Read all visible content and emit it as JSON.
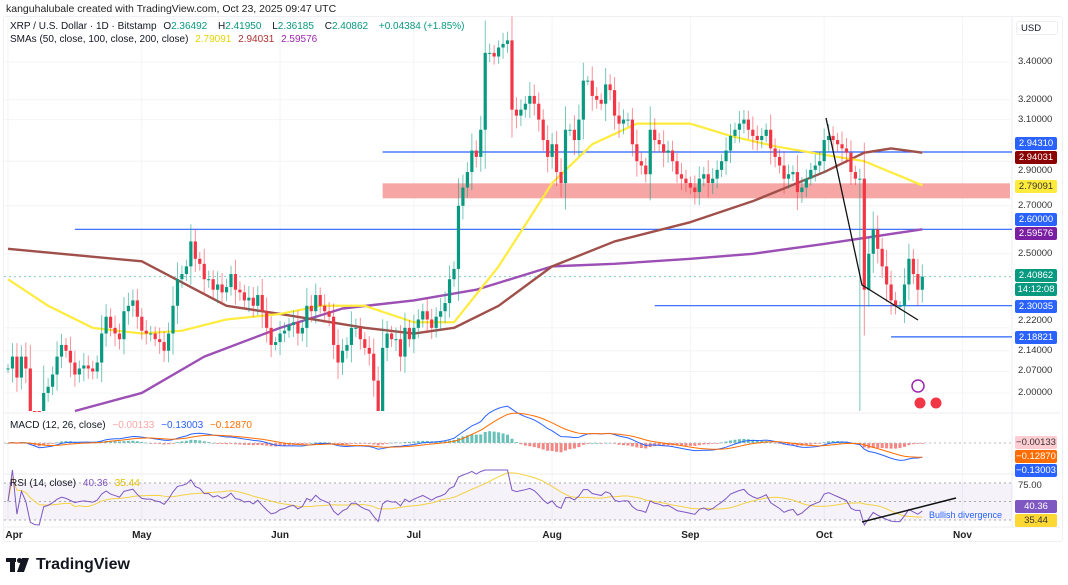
{
  "credit": "kanguhalubale created with TradingView.com, Oct 23, 2025 09:47 UTC",
  "header": {
    "symbol": "XRP / U.S. Dollar · 1D · Bitstamp",
    "o_label": "O",
    "o": "2.36492",
    "h_label": "H",
    "h": "2.41950",
    "l_label": "L",
    "l": "2.36185",
    "c_label": "C",
    "c": "2.40862",
    "change": "+0.04384 (+1.85%)",
    "sma_label": "SMAs (50, close, 100, close, 200, close)",
    "sma50": "2.79091",
    "sma100": "2.94031",
    "sma200": "2.59576"
  },
  "macd": {
    "label": "MACD (12, 26, close)",
    "hist": "−0.00133",
    "macd": "−0.13003",
    "signal": "−0.12870"
  },
  "rsi": {
    "label": "RSI (14, close)",
    "value": "40.36",
    "ma": "35.44",
    "level_label": "75.00",
    "annotation": "Bullish divergence"
  },
  "price_axis": {
    "currency": "USD",
    "labels": [
      "3.40000",
      "3.20000",
      "3.10000",
      "2.90000",
      "2.70000",
      "2.50000",
      "2.22000",
      "2.14000",
      "2.07000",
      "2.00000"
    ],
    "tags": [
      {
        "text": "2.94310",
        "color": "#2962ff"
      },
      {
        "text": "2.94031",
        "color": "#8b0000"
      },
      {
        "text": "2.79091",
        "color": "#ffeb3b",
        "fg": "#333"
      },
      {
        "text": "2.60000",
        "color": "#2962ff"
      },
      {
        "text": "2.59576",
        "color": "#7b1fa2"
      },
      {
        "text": "2.40862",
        "color": "#089981"
      },
      {
        "text": "14:12:08",
        "color": "#089981"
      },
      {
        "text": "2.30035",
        "color": "#2962ff"
      },
      {
        "text": "2.18821",
        "color": "#2962ff"
      }
    ],
    "macd_tags": [
      {
        "text": "−0.00133",
        "color": "#ffcdd2",
        "fg": "#333"
      },
      {
        "text": "−0.12870",
        "color": "#ff6d00"
      },
      {
        "text": "−0.13003",
        "color": "#2962ff"
      }
    ],
    "rsi_tags": [
      {
        "text": "40.36",
        "color": "#7e57c2"
      },
      {
        "text": "35.44",
        "color": "#fdd835",
        "fg": "#333"
      }
    ]
  },
  "time_axis": [
    "Apr",
    "May",
    "Jun",
    "Jul",
    "Aug",
    "Sep",
    "Oct",
    "Nov"
  ],
  "logo": "TradingView",
  "colors": {
    "up": "#089981",
    "down": "#f23645",
    "sma50": "#ffeb3b",
    "sma100": "#a0504a",
    "sma200": "#9c4fb4",
    "level": "#2962ff",
    "zone": "#f7a6a6"
  },
  "chart_data": {
    "type": "candlestick",
    "scale": "log",
    "ylim": [
      1.93,
      3.62
    ],
    "first_day": "Apr 1",
    "closes": [
      2.08,
      2.12,
      2.05,
      2.12,
      2.08,
      1.9,
      1.86,
      1.8,
      2.0,
      2.02,
      2.06,
      2.12,
      2.16,
      2.14,
      2.1,
      2.06,
      2.08,
      2.09,
      2.08,
      2.07,
      2.1,
      2.2,
      2.26,
      2.22,
      2.2,
      2.18,
      2.28,
      2.3,
      2.32,
      2.26,
      2.21,
      2.2,
      2.2,
      2.18,
      2.17,
      2.14,
      2.2,
      2.3,
      2.4,
      2.42,
      2.45,
      2.55,
      2.48,
      2.46,
      2.4,
      2.4,
      2.36,
      2.38,
      2.35,
      2.37,
      2.42,
      2.36,
      2.35,
      2.32,
      2.33,
      2.3,
      2.34,
      2.28,
      2.22,
      2.16,
      2.17,
      2.2,
      2.21,
      2.23,
      2.24,
      2.2,
      2.22,
      2.3,
      2.28,
      2.34,
      2.3,
      2.28,
      2.26,
      2.16,
      2.1,
      2.14,
      2.16,
      2.22,
      2.22,
      2.18,
      2.15,
      2.13,
      2.04,
      1.94,
      2.15,
      2.2,
      2.18,
      2.18,
      2.12,
      2.22,
      2.18,
      2.22,
      2.25,
      2.28,
      2.25,
      2.22,
      2.26,
      2.28,
      2.31,
      2.4,
      2.44,
      2.7,
      2.78,
      2.85,
      2.95,
      2.92,
      3.05,
      3.45,
      3.45,
      3.43,
      3.48,
      3.5,
      3.52,
      3.15,
      3.12,
      3.15,
      3.18,
      3.22,
      3.18,
      3.1,
      3.0,
      2.92,
      2.98,
      2.85,
      2.8,
      3.05,
      3.05,
      3.0,
      3.1,
      3.3,
      3.3,
      3.22,
      3.2,
      3.18,
      3.28,
      3.25,
      3.12,
      3.08,
      3.1,
      3.1,
      2.98,
      2.9,
      2.88,
      2.84,
      3.05,
      3.0,
      2.98,
      2.94,
      2.95,
      2.9,
      2.84,
      2.82,
      2.8,
      2.78,
      2.76,
      2.82,
      2.84,
      2.8,
      2.82,
      2.86,
      2.9,
      2.95,
      3.02,
      3.05,
      3.08,
      3.1,
      3.05,
      3.02,
      3.0,
      3.02,
      3.05,
      2.96,
      2.92,
      2.88,
      2.82,
      2.84,
      2.85,
      2.76,
      2.78,
      2.82,
      2.86,
      2.88,
      2.9,
      3.0,
      3.02,
      3.0,
      2.98,
      2.96,
      2.94,
      2.85,
      2.82,
      2.82,
      2.36,
      2.5,
      2.6,
      2.52,
      2.45,
      2.38,
      2.32,
      2.3,
      2.3,
      2.38,
      2.48,
      2.42,
      2.36,
      2.41
    ],
    "sma50": [
      [
        0,
        2.4
      ],
      [
        9,
        2.3
      ],
      [
        19,
        2.22
      ],
      [
        30,
        2.2
      ],
      [
        39,
        2.21
      ],
      [
        49,
        2.25
      ],
      [
        61,
        2.27
      ],
      [
        70,
        2.3
      ],
      [
        80,
        2.3
      ],
      [
        91,
        2.24
      ],
      [
        100,
        2.24
      ],
      [
        110,
        2.45
      ],
      [
        122,
        2.8
      ],
      [
        131,
        2.98
      ],
      [
        141,
        3.08
      ],
      [
        153,
        3.08
      ],
      [
        162,
        3.02
      ],
      [
        172,
        2.97
      ],
      [
        183,
        2.93
      ],
      [
        192,
        2.9
      ],
      [
        205,
        2.79
      ]
    ],
    "sma100": [
      [
        0,
        2.52
      ],
      [
        30,
        2.47
      ],
      [
        49,
        2.3
      ],
      [
        61,
        2.27
      ],
      [
        80,
        2.22
      ],
      [
        91,
        2.2
      ],
      [
        100,
        2.22
      ],
      [
        110,
        2.3
      ],
      [
        122,
        2.45
      ],
      [
        136,
        2.55
      ],
      [
        153,
        2.63
      ],
      [
        167,
        2.72
      ],
      [
        183,
        2.85
      ],
      [
        192,
        2.94
      ],
      [
        198,
        2.96
      ],
      [
        205,
        2.94
      ]
    ],
    "sma200": [
      [
        15,
        1.93
      ],
      [
        30,
        2.0
      ],
      [
        44,
        2.12
      ],
      [
        61,
        2.22
      ],
      [
        75,
        2.29
      ],
      [
        91,
        2.32
      ],
      [
        105,
        2.36
      ],
      [
        122,
        2.45
      ],
      [
        136,
        2.46
      ],
      [
        153,
        2.48
      ],
      [
        167,
        2.5
      ],
      [
        183,
        2.54
      ],
      [
        205,
        2.6
      ]
    ],
    "levels": [
      {
        "price": 2.9431,
        "from_day": 84
      },
      {
        "price": 2.6,
        "from_day": 15
      },
      {
        "price": 2.30035,
        "from_day": 145
      },
      {
        "price": 2.18821,
        "from_day": 198
      }
    ],
    "zone": {
      "low": 2.75,
      "high": 2.79,
      "from_day": 84
    }
  }
}
